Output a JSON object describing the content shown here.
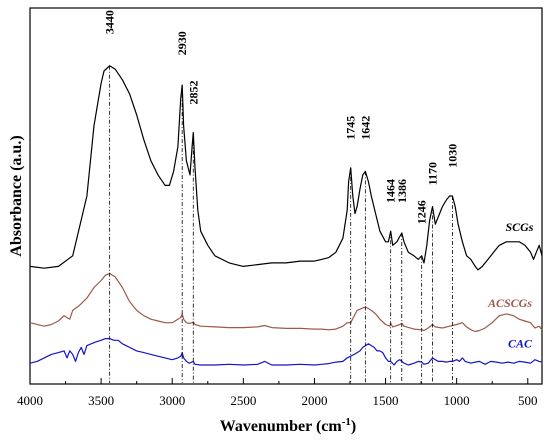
{
  "chart_data": {
    "type": "line",
    "xlabel_main": "Wavenumber (cm",
    "xlabel_sup": "-1",
    "xlabel_end": ")",
    "ylabel": "Absorbance (a.u.)",
    "xlim": [
      4000,
      400
    ],
    "ylim": [
      0,
      1
    ],
    "x_ticks": [
      4000,
      3500,
      3000,
      2500,
      2000,
      1500,
      1000,
      500
    ],
    "grid": false,
    "legend": "inline labels",
    "series": [
      {
        "name": "SCGs",
        "color": "#000000",
        "points": [
          [
            4000,
            0.3
          ],
          [
            3900,
            0.295
          ],
          [
            3800,
            0.3
          ],
          [
            3700,
            0.33
          ],
          [
            3600,
            0.5
          ],
          [
            3550,
            0.7
          ],
          [
            3500,
            0.82
          ],
          [
            3480,
            0.855
          ],
          [
            3440,
            0.87
          ],
          [
            3400,
            0.86
          ],
          [
            3350,
            0.83
          ],
          [
            3300,
            0.79
          ],
          [
            3250,
            0.73
          ],
          [
            3200,
            0.66
          ],
          [
            3150,
            0.6
          ],
          [
            3100,
            0.56
          ],
          [
            3050,
            0.53
          ],
          [
            3020,
            0.53
          ],
          [
            2990,
            0.57
          ],
          [
            2960,
            0.64
          ],
          [
            2940,
            0.78
          ],
          [
            2930,
            0.815
          ],
          [
            2920,
            0.7
          ],
          [
            2900,
            0.6
          ],
          [
            2875,
            0.56
          ],
          [
            2860,
            0.64
          ],
          [
            2852,
            0.68
          ],
          [
            2840,
            0.58
          ],
          [
            2820,
            0.46
          ],
          [
            2800,
            0.4
          ],
          [
            2750,
            0.36
          ],
          [
            2700,
            0.33
          ],
          [
            2600,
            0.31
          ],
          [
            2500,
            0.3
          ],
          [
            2400,
            0.305
          ],
          [
            2300,
            0.31
          ],
          [
            2200,
            0.31
          ],
          [
            2100,
            0.315
          ],
          [
            2000,
            0.315
          ],
          [
            1950,
            0.32
          ],
          [
            1900,
            0.325
          ],
          [
            1850,
            0.34
          ],
          [
            1800,
            0.38
          ],
          [
            1770,
            0.46
          ],
          [
            1760,
            0.54
          ],
          [
            1745,
            0.58
          ],
          [
            1730,
            0.5
          ],
          [
            1715,
            0.45
          ],
          [
            1700,
            0.47
          ],
          [
            1680,
            0.52
          ],
          [
            1660,
            0.56
          ],
          [
            1642,
            0.57
          ],
          [
            1620,
            0.54
          ],
          [
            1600,
            0.5
          ],
          [
            1570,
            0.45
          ],
          [
            1540,
            0.4
          ],
          [
            1500,
            0.37
          ],
          [
            1480,
            0.37
          ],
          [
            1464,
            0.4
          ],
          [
            1450,
            0.36
          ],
          [
            1420,
            0.37
          ],
          [
            1400,
            0.385
          ],
          [
            1386,
            0.395
          ],
          [
            1370,
            0.37
          ],
          [
            1340,
            0.34
          ],
          [
            1300,
            0.33
          ],
          [
            1270,
            0.32
          ],
          [
            1246,
            0.33
          ],
          [
            1230,
            0.31
          ],
          [
            1210,
            0.36
          ],
          [
            1190,
            0.43
          ],
          [
            1170,
            0.47
          ],
          [
            1150,
            0.42
          ],
          [
            1120,
            0.45
          ],
          [
            1100,
            0.47
          ],
          [
            1070,
            0.49
          ],
          [
            1050,
            0.5
          ],
          [
            1030,
            0.5
          ],
          [
            1010,
            0.47
          ],
          [
            990,
            0.42
          ],
          [
            960,
            0.37
          ],
          [
            930,
            0.33
          ],
          [
            900,
            0.32
          ],
          [
            870,
            0.3
          ],
          [
            850,
            0.29
          ],
          [
            820,
            0.3
          ],
          [
            780,
            0.32
          ],
          [
            740,
            0.34
          ],
          [
            700,
            0.36
          ],
          [
            650,
            0.37
          ],
          [
            600,
            0.37
          ],
          [
            560,
            0.37
          ],
          [
            520,
            0.36
          ],
          [
            480,
            0.34
          ],
          [
            460,
            0.32
          ],
          [
            440,
            0.34
          ],
          [
            420,
            0.36
          ],
          [
            400,
            0.33
          ]
        ]
      },
      {
        "name": "ACSCGs",
        "color": "#9c5a4b",
        "points": [
          [
            4000,
            0.14
          ],
          [
            3900,
            0.13
          ],
          [
            3850,
            0.135
          ],
          [
            3800,
            0.145
          ],
          [
            3760,
            0.16
          ],
          [
            3720,
            0.15
          ],
          [
            3700,
            0.175
          ],
          [
            3650,
            0.19
          ],
          [
            3600,
            0.21
          ],
          [
            3550,
            0.24
          ],
          [
            3500,
            0.26
          ],
          [
            3470,
            0.275
          ],
          [
            3440,
            0.28
          ],
          [
            3400,
            0.27
          ],
          [
            3350,
            0.24
          ],
          [
            3300,
            0.2
          ],
          [
            3250,
            0.175
          ],
          [
            3200,
            0.16
          ],
          [
            3150,
            0.15
          ],
          [
            3100,
            0.145
          ],
          [
            3050,
            0.14
          ],
          [
            3000,
            0.14
          ],
          [
            2960,
            0.15
          ],
          [
            2940,
            0.155
          ],
          [
            2930,
            0.165
          ],
          [
            2920,
            0.15
          ],
          [
            2900,
            0.14
          ],
          [
            2880,
            0.138
          ],
          [
            2860,
            0.14
          ],
          [
            2852,
            0.142
          ],
          [
            2840,
            0.135
          ],
          [
            2800,
            0.13
          ],
          [
            2700,
            0.128
          ],
          [
            2600,
            0.126
          ],
          [
            2500,
            0.126
          ],
          [
            2400,
            0.128
          ],
          [
            2350,
            0.132
          ],
          [
            2300,
            0.126
          ],
          [
            2200,
            0.124
          ],
          [
            2100,
            0.124
          ],
          [
            2000,
            0.122
          ],
          [
            1950,
            0.122
          ],
          [
            1900,
            0.12
          ],
          [
            1850,
            0.122
          ],
          [
            1800,
            0.13
          ],
          [
            1770,
            0.14
          ],
          [
            1745,
            0.14
          ],
          [
            1720,
            0.16
          ],
          [
            1700,
            0.175
          ],
          [
            1670,
            0.18
          ],
          [
            1642,
            0.185
          ],
          [
            1620,
            0.18
          ],
          [
            1600,
            0.175
          ],
          [
            1570,
            0.165
          ],
          [
            1540,
            0.15
          ],
          [
            1500,
            0.135
          ],
          [
            1470,
            0.13
          ],
          [
            1464,
            0.138
          ],
          [
            1450,
            0.128
          ],
          [
            1400,
            0.135
          ],
          [
            1386,
            0.138
          ],
          [
            1370,
            0.13
          ],
          [
            1300,
            0.122
          ],
          [
            1246,
            0.12
          ],
          [
            1230,
            0.118
          ],
          [
            1200,
            0.125
          ],
          [
            1170,
            0.135
          ],
          [
            1150,
            0.128
          ],
          [
            1100,
            0.125
          ],
          [
            1050,
            0.13
          ],
          [
            1030,
            0.132
          ],
          [
            1000,
            0.135
          ],
          [
            960,
            0.14
          ],
          [
            930,
            0.128
          ],
          [
            900,
            0.12
          ],
          [
            870,
            0.115
          ],
          [
            840,
            0.118
          ],
          [
            800,
            0.125
          ],
          [
            750,
            0.14
          ],
          [
            700,
            0.16
          ],
          [
            650,
            0.165
          ],
          [
            600,
            0.16
          ],
          [
            560,
            0.15
          ],
          [
            520,
            0.145
          ],
          [
            480,
            0.14
          ],
          [
            450,
            0.125
          ],
          [
            420,
            0.13
          ],
          [
            400,
            0.12
          ]
        ]
      },
      {
        "name": "CAC",
        "color": "#1515c8",
        "points": [
          [
            4000,
            0.025
          ],
          [
            3950,
            0.03
          ],
          [
            3900,
            0.04
          ],
          [
            3850,
            0.05
          ],
          [
            3800,
            0.055
          ],
          [
            3760,
            0.06
          ],
          [
            3740,
            0.04
          ],
          [
            3720,
            0.06
          ],
          [
            3700,
            0.05
          ],
          [
            3680,
            0.03
          ],
          [
            3660,
            0.055
          ],
          [
            3640,
            0.07
          ],
          [
            3620,
            0.05
          ],
          [
            3600,
            0.075
          ],
          [
            3570,
            0.08
          ],
          [
            3540,
            0.085
          ],
          [
            3500,
            0.09
          ],
          [
            3470,
            0.095
          ],
          [
            3440,
            0.095
          ],
          [
            3410,
            0.09
          ],
          [
            3380,
            0.09
          ],
          [
            3350,
            0.08
          ],
          [
            3300,
            0.07
          ],
          [
            3250,
            0.06
          ],
          [
            3200,
            0.055
          ],
          [
            3150,
            0.05
          ],
          [
            3100,
            0.045
          ],
          [
            3050,
            0.04
          ],
          [
            3000,
            0.035
          ],
          [
            2960,
            0.04
          ],
          [
            2940,
            0.045
          ],
          [
            2930,
            0.055
          ],
          [
            2920,
            0.04
          ],
          [
            2900,
            0.03
          ],
          [
            2880,
            0.025
          ],
          [
            2852,
            0.03
          ],
          [
            2840,
            0.022
          ],
          [
            2800,
            0.02
          ],
          [
            2700,
            0.02
          ],
          [
            2600,
            0.022
          ],
          [
            2500,
            0.02
          ],
          [
            2400,
            0.022
          ],
          [
            2350,
            0.03
          ],
          [
            2300,
            0.02
          ],
          [
            2200,
            0.02
          ],
          [
            2100,
            0.022
          ],
          [
            2000,
            0.02
          ],
          [
            1950,
            0.022
          ],
          [
            1900,
            0.024
          ],
          [
            1850,
            0.028
          ],
          [
            1800,
            0.03
          ],
          [
            1770,
            0.04
          ],
          [
            1745,
            0.045
          ],
          [
            1720,
            0.05
          ],
          [
            1700,
            0.055
          ],
          [
            1680,
            0.06
          ],
          [
            1660,
            0.07
          ],
          [
            1642,
            0.075
          ],
          [
            1620,
            0.08
          ],
          [
            1600,
            0.075
          ],
          [
            1580,
            0.07
          ],
          [
            1560,
            0.06
          ],
          [
            1540,
            0.06
          ],
          [
            1520,
            0.055
          ],
          [
            1500,
            0.04
          ],
          [
            1480,
            0.03
          ],
          [
            1464,
            0.03
          ],
          [
            1440,
            0.02
          ],
          [
            1420,
            0.03
          ],
          [
            1400,
            0.035
          ],
          [
            1386,
            0.03
          ],
          [
            1370,
            0.025
          ],
          [
            1340,
            0.02
          ],
          [
            1300,
            0.025
          ],
          [
            1270,
            0.03
          ],
          [
            1246,
            0.028
          ],
          [
            1230,
            0.022
          ],
          [
            1200,
            0.025
          ],
          [
            1170,
            0.04
          ],
          [
            1150,
            0.035
          ],
          [
            1130,
            0.03
          ],
          [
            1100,
            0.03
          ],
          [
            1070,
            0.028
          ],
          [
            1050,
            0.03
          ],
          [
            1030,
            0.03
          ],
          [
            1000,
            0.035
          ],
          [
            980,
            0.03
          ],
          [
            960,
            0.04
          ],
          [
            940,
            0.03
          ],
          [
            900,
            0.025
          ],
          [
            870,
            0.028
          ],
          [
            840,
            0.03
          ],
          [
            800,
            0.022
          ],
          [
            760,
            0.03
          ],
          [
            720,
            0.028
          ],
          [
            680,
            0.025
          ],
          [
            640,
            0.028
          ],
          [
            600,
            0.025
          ],
          [
            560,
            0.03
          ],
          [
            520,
            0.028
          ],
          [
            480,
            0.025
          ],
          [
            450,
            0.035
          ],
          [
            420,
            0.03
          ],
          [
            400,
            0.028
          ]
        ]
      }
    ],
    "series_labels": [
      {
        "text": "SCGs",
        "color": "#000000",
        "x": 460,
        "y": 0.4
      },
      {
        "text": "ACSCGs",
        "color": "#9c5a4b",
        "x": 470,
        "y": 0.185
      },
      {
        "text": "CAC",
        "color": "#1515c8",
        "x": 470,
        "y": 0.07
      }
    ],
    "peaks": [
      {
        "label": "3440",
        "x": 3440,
        "line_top": 0.87,
        "label_y": 0.96
      },
      {
        "label": "2930",
        "x": 2930,
        "line_top": 0.815,
        "label_y": 0.9
      },
      {
        "label": "2852",
        "x": 2852,
        "line_top": 0.68,
        "label_y": 0.76
      },
      {
        "label": "1745",
        "x": 1745,
        "line_top": 0.58,
        "label_y": 0.66
      },
      {
        "label": "1642",
        "x": 1642,
        "line_top": 0.57,
        "label_y": 0.66
      },
      {
        "label": "1464",
        "x": 1464,
        "line_top": 0.4,
        "label_y": 0.48
      },
      {
        "label": "1386",
        "x": 1386,
        "line_top": 0.395,
        "label_y": 0.48
      },
      {
        "label": "1246",
        "x": 1246,
        "line_top": 0.33,
        "label_y": 0.42
      },
      {
        "label": "1170",
        "x": 1170,
        "line_top": 0.47,
        "label_y": 0.53
      },
      {
        "label": "1030",
        "x": 1030,
        "line_top": 0.5,
        "label_y": 0.58
      }
    ]
  }
}
